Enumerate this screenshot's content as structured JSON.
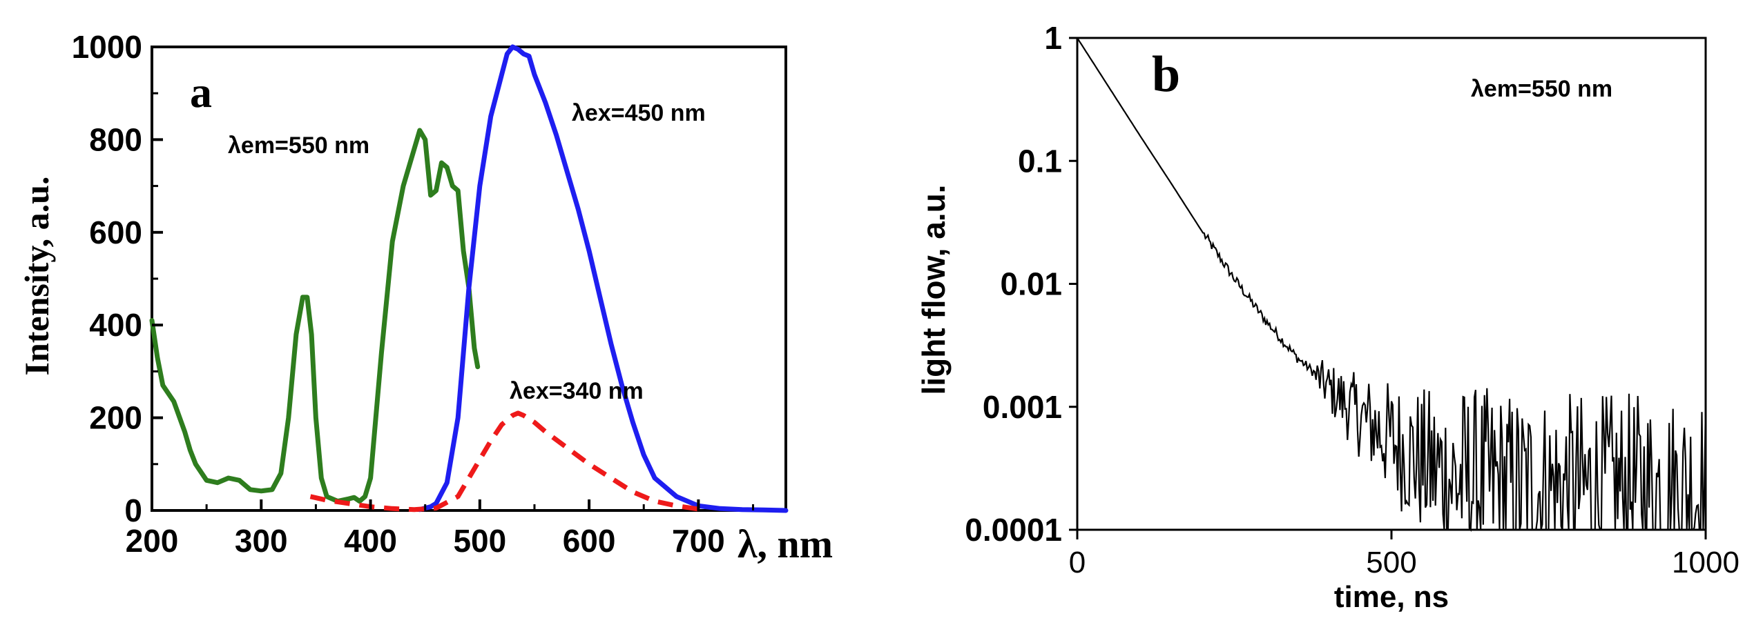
{
  "chart_data": [
    {
      "panel_label": "a",
      "type": "line",
      "title": "",
      "xlabel": "λ, nm",
      "ylabel": "Intensity, a.u.",
      "xlim": [
        200,
        780
      ],
      "ylim": [
        0,
        1000
      ],
      "xticks": [
        200,
        300,
        400,
        500,
        600,
        700
      ],
      "yticks": [
        0,
        200,
        400,
        600,
        800,
        1000
      ],
      "grid": false,
      "annotations": [
        {
          "text": "λem=550 nm",
          "series": "excitation λem=550 nm"
        },
        {
          "text": "λex=450 nm",
          "series": "emission λex=450 nm"
        },
        {
          "text": "λex=340 nm",
          "series": "emission λex=340 nm"
        }
      ],
      "series": [
        {
          "name": "excitation λem=550 nm",
          "color": "#2e7d1e",
          "style": "solid",
          "x": [
            200,
            205,
            210,
            220,
            230,
            235,
            240,
            250,
            260,
            270,
            280,
            290,
            300,
            310,
            318,
            325,
            332,
            338,
            342,
            346,
            350,
            355,
            360,
            370,
            380,
            385,
            390,
            395,
            400,
            410,
            420,
            430,
            440,
            445,
            450,
            455,
            460,
            465,
            470,
            475,
            480,
            485,
            490,
            495,
            498
          ],
          "values": [
            410,
            330,
            270,
            235,
            170,
            130,
            100,
            65,
            60,
            70,
            65,
            45,
            42,
            45,
            80,
            200,
            380,
            460,
            460,
            380,
            200,
            70,
            30,
            20,
            25,
            28,
            20,
            30,
            70,
            340,
            580,
            700,
            780,
            820,
            800,
            680,
            690,
            750,
            740,
            700,
            690,
            560,
            480,
            350,
            310
          ]
        },
        {
          "name": "emission λex=450 nm",
          "color": "#1e1ef0",
          "style": "solid",
          "x": [
            445,
            455,
            460,
            470,
            480,
            490,
            500,
            510,
            520,
            525,
            530,
            535,
            540,
            545,
            550,
            560,
            570,
            580,
            590,
            600,
            610,
            620,
            630,
            640,
            650,
            660,
            680,
            700,
            720,
            740,
            760,
            780
          ],
          "values": [
            2,
            8,
            15,
            60,
            200,
            480,
            700,
            850,
            940,
            985,
            1000,
            995,
            985,
            980,
            940,
            880,
            810,
            730,
            650,
            560,
            460,
            360,
            270,
            190,
            120,
            70,
            30,
            10,
            4,
            2,
            1,
            0
          ]
        },
        {
          "name": "emission λex=340 nm",
          "color": "#ee1a1a",
          "style": "dashed",
          "x": [
            345,
            360,
            380,
            400,
            420,
            440,
            460,
            480,
            500,
            510,
            520,
            530,
            535,
            540,
            550,
            560,
            580,
            600,
            620,
            640,
            660,
            680,
            700
          ],
          "values": [
            30,
            22,
            15,
            8,
            4,
            2,
            5,
            30,
            110,
            150,
            185,
            205,
            210,
            205,
            190,
            170,
            135,
            100,
            70,
            40,
            20,
            10,
            3
          ]
        }
      ]
    },
    {
      "panel_label": "b",
      "type": "line",
      "title": "",
      "xlabel": "time, ns",
      "ylabel": "light flow, a.u.",
      "xlim": [
        0,
        1000
      ],
      "ylim": [
        0.0001,
        1
      ],
      "yscale": "log",
      "xticks": [
        0,
        500,
        1000
      ],
      "yticks": [
        1,
        0.1,
        0.01,
        0.001,
        0.0001
      ],
      "ytick_labels": [
        "1",
        "0.1",
        "0.01",
        "0.001",
        "0.0001"
      ],
      "grid": false,
      "annotations": [
        {
          "text": "λem=550 nm",
          "location": "top-right"
        }
      ],
      "series": [
        {
          "name": "decay λem=550 nm",
          "color": "#000000",
          "style": "solid",
          "x": [
            0,
            50,
            100,
            150,
            200,
            250,
            300,
            350,
            400,
            450,
            500,
            550,
            600,
            650,
            700,
            750,
            800,
            850,
            900,
            950,
            1000
          ],
          "values": [
            1,
            0.4,
            0.16,
            0.065,
            0.026,
            0.011,
            0.005,
            0.0025,
            0.0015,
            0.0009,
            0.0006,
            0.0004,
            0.0003,
            0.00028,
            0.00026,
            0.00025,
            0.00025,
            0.00025,
            0.00025,
            0.00025,
            0.00025
          ],
          "noise_from_x": 380
        }
      ]
    }
  ]
}
